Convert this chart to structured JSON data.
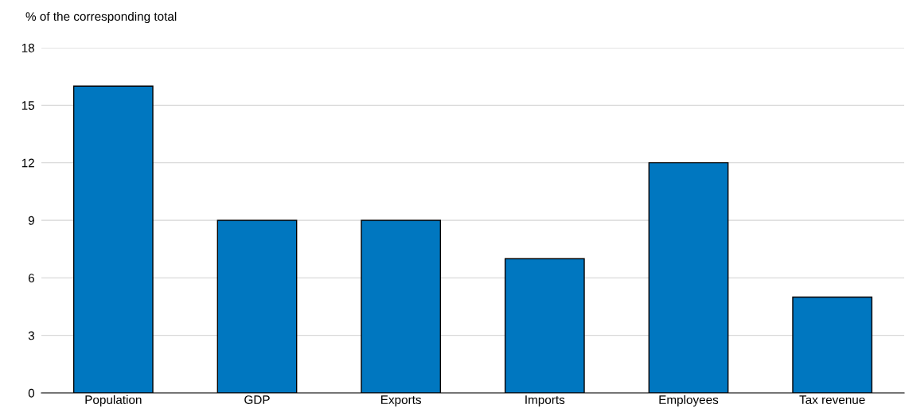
{
  "chart_data": {
    "type": "bar",
    "ylabel": "% of the corresponding total",
    "categories": [
      "Population",
      "GDP",
      "Exports",
      "Imports",
      "Employees",
      "Tax revenue"
    ],
    "values": [
      16,
      9,
      9,
      7,
      12,
      5
    ],
    "color": "#0077c0",
    "ylim": [
      0,
      18
    ],
    "yticks": [
      0,
      3,
      6,
      9,
      12,
      15,
      18
    ],
    "grid": "y",
    "legend": false
  }
}
